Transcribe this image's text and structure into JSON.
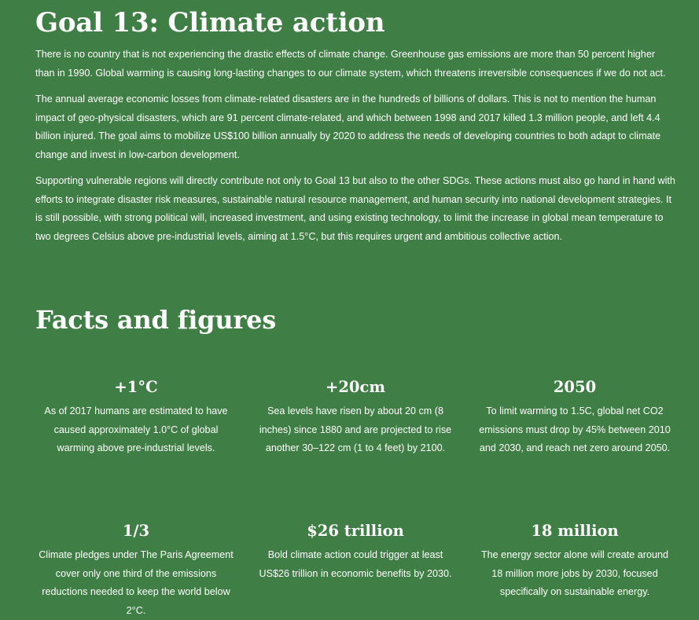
{
  "goal": {
    "title": "Goal 13: Climate action",
    "paragraphs": [
      "There is no country that is not experiencing the drastic effects of climate change. Greenhouse gas emissions are more than 50 percent higher than in 1990. Global warming is causing long-lasting changes to our climate system, which threatens irreversible consequences if we do not act.",
      "The annual average economic losses from climate-related disasters are in the hundreds of billions of dollars. This is not to mention the human impact of geo-physical disasters, which are 91 percent climate-related, and which between 1998 and 2017 killed 1.3 million people, and left 4.4 billion injured. The goal aims to mobilize US$100 billion annually by 2020 to address the needs of developing countries to both adapt to climate change and invest in low-carbon development.",
      "Supporting vulnerable regions will directly contribute not only to Goal 13 but also to the other SDGs. These actions must also go hand in hand with efforts to integrate disaster risk measures, sustainable natural resource management, and human security into national development strategies. It is still possible, with strong political will, increased investment, and using existing technology, to limit the increase in global mean temperature to two degrees Celsius above pre-industrial levels, aiming at 1.5°C, but this requires urgent and ambitious collective action."
    ]
  },
  "facts": {
    "title": "Facts and figures",
    "items": [
      {
        "headline": "+1°C",
        "text": "As of 2017 humans are estimated to have caused approximately 1.0°C of global warming above pre-industrial levels."
      },
      {
        "headline": "+20cm",
        "text": "Sea levels have risen by about 20 cm (8 inches) since 1880 and are projected to rise another 30–122 cm (1 to 4 feet) by 2100."
      },
      {
        "headline": "2050",
        "text": "To limit warming to 1.5C, global net CO2 emissions must drop by 45% between 2010 and 2030, and reach net zero around 2050."
      },
      {
        "headline": "1/3",
        "text": "Climate pledges under The Paris Agreement cover only one third of the emissions reductions needed to keep the world below 2°C."
      },
      {
        "headline": "$26 trillion",
        "text": "Bold climate action could trigger at least US$26 trillion in economic benefits by 2030."
      },
      {
        "headline": "18 million",
        "text": "The energy sector alone will create around 18 million more jobs by 2030, focused specifically on sustainable energy."
      }
    ]
  },
  "colors": {
    "background": "#3f7e44",
    "text": "#ffffff"
  }
}
